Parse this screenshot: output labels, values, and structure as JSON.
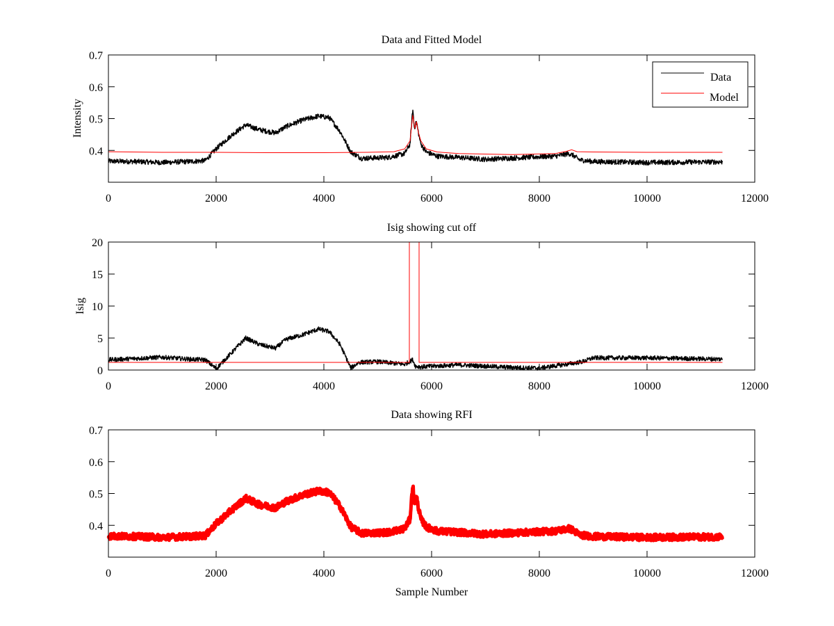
{
  "chart_data": [
    {
      "type": "line",
      "title": "Data and Fitted Model",
      "xlabel": "",
      "ylabel": "Intensity",
      "xlim": [
        0,
        12000
      ],
      "ylim": [
        0.3,
        0.7
      ],
      "xticks": [
        "0",
        "2000",
        "4000",
        "6000",
        "8000",
        "10000",
        "12000"
      ],
      "xtick_values": [
        0,
        2000,
        4000,
        6000,
        8000,
        10000,
        12000
      ],
      "yticks": [
        "0.4",
        "0.5",
        "0.6",
        "0.7"
      ],
      "ytick_values": [
        0.4,
        0.5,
        0.6,
        0.7
      ],
      "legend": {
        "placement": "top-right",
        "entries": [
          "Data",
          "Model"
        ]
      },
      "series": [
        {
          "name": "Data",
          "color": "#000000",
          "noise": 0.008,
          "x": [
            0,
            500,
            1000,
            1500,
            1800,
            2000,
            2300,
            2550,
            2800,
            3100,
            3300,
            3600,
            3900,
            4100,
            4300,
            4500,
            4700,
            5200,
            5500,
            5600,
            5650,
            5680,
            5720,
            5750,
            5800,
            5900,
            6100,
            6500,
            7000,
            7500,
            8000,
            8300,
            8550,
            8620,
            8750,
            9000,
            10000,
            11400
          ],
          "y": [
            0.366,
            0.365,
            0.362,
            0.365,
            0.368,
            0.405,
            0.45,
            0.48,
            0.465,
            0.455,
            0.475,
            0.495,
            0.508,
            0.503,
            0.46,
            0.395,
            0.375,
            0.378,
            0.39,
            0.42,
            0.53,
            0.47,
            0.49,
            0.46,
            0.42,
            0.395,
            0.382,
            0.378,
            0.372,
            0.376,
            0.38,
            0.382,
            0.39,
            0.385,
            0.37,
            0.365,
            0.362,
            0.364
          ]
        },
        {
          "name": "Model",
          "color": "#ff0000",
          "noise": 0,
          "x": [
            0,
            1000,
            2000,
            3000,
            4000,
            4800,
            5300,
            5500,
            5600,
            5650,
            5690,
            5720,
            5750,
            5800,
            5900,
            6100,
            6500,
            7500,
            8300,
            8500,
            8600,
            8700,
            9000,
            10000,
            11400
          ],
          "y": [
            0.396,
            0.394,
            0.394,
            0.393,
            0.393,
            0.394,
            0.396,
            0.405,
            0.43,
            0.51,
            0.47,
            0.49,
            0.46,
            0.43,
            0.405,
            0.395,
            0.39,
            0.387,
            0.39,
            0.397,
            0.402,
            0.396,
            0.395,
            0.394,
            0.394
          ]
        }
      ]
    },
    {
      "type": "line",
      "title": "Isig showing cut off",
      "xlabel": "",
      "ylabel": "Isig",
      "xlim": [
        0,
        12000
      ],
      "ylim": [
        0,
        20
      ],
      "xticks": [
        "0",
        "2000",
        "4000",
        "6000",
        "8000",
        "10000",
        "12000"
      ],
      "xtick_values": [
        0,
        2000,
        4000,
        6000,
        8000,
        10000,
        12000
      ],
      "yticks": [
        "0",
        "5",
        "10",
        "15",
        "20"
      ],
      "ytick_values": [
        0,
        5,
        10,
        15,
        20
      ],
      "series": [
        {
          "name": "Isig",
          "color": "#000000",
          "noise": 0.35,
          "x": [
            0,
            500,
            1000,
            1500,
            1800,
            2000,
            2150,
            2550,
            2800,
            3100,
            3300,
            3600,
            3900,
            4100,
            4300,
            4500,
            4650,
            5000,
            5500,
            5650,
            5700,
            5800,
            6500,
            7000,
            7500,
            8000,
            8500,
            8800,
            9000,
            10000,
            11400
          ],
          "y": [
            1.6,
            1.8,
            2.0,
            1.7,
            1.6,
            0.2,
            1.5,
            5.0,
            4.0,
            3.4,
            4.8,
            5.5,
            6.4,
            6.0,
            4.0,
            0.3,
            1.2,
            1.3,
            0.9,
            1.6,
            0.6,
            0.5,
            0.8,
            0.6,
            0.4,
            0.3,
            0.9,
            1.3,
            1.9,
            1.9,
            1.7
          ]
        },
        {
          "name": "Cut off",
          "color": "#ff0000",
          "noise": 0,
          "x": [
            0,
            5587,
            5587,
            5768,
            5768,
            11400
          ],
          "y": [
            1.2,
            1.2,
            20,
            20,
            1.2,
            1.2
          ]
        }
      ]
    },
    {
      "type": "line",
      "title": "Data showing RFI",
      "xlabel": "Sample Number",
      "ylabel": "",
      "xlim": [
        0,
        12000
      ],
      "ylim": [
        0.3,
        0.7
      ],
      "xticks": [
        "0",
        "2000",
        "4000",
        "6000",
        "8000",
        "10000",
        "12000"
      ],
      "xtick_values": [
        0,
        2000,
        4000,
        6000,
        8000,
        10000,
        12000
      ],
      "yticks": [
        "0.4",
        "0.5",
        "0.6",
        "0.7"
      ],
      "ytick_values": [
        0.4,
        0.5,
        0.6,
        0.7
      ],
      "series": [
        {
          "name": "RFI",
          "color": "#ff0000",
          "noise": 0.01,
          "x": [
            0,
            500,
            1000,
            1500,
            1800,
            2000,
            2300,
            2550,
            2800,
            3100,
            3300,
            3600,
            3900,
            4100,
            4300,
            4500,
            4700,
            5200,
            5500,
            5600,
            5650,
            5680,
            5720,
            5750,
            5800,
            5900,
            6100,
            6500,
            7000,
            7500,
            8000,
            8300,
            8550,
            8620,
            8750,
            9000,
            10000,
            11400
          ],
          "y": [
            0.366,
            0.365,
            0.362,
            0.365,
            0.368,
            0.405,
            0.45,
            0.485,
            0.465,
            0.455,
            0.475,
            0.495,
            0.508,
            0.503,
            0.46,
            0.395,
            0.375,
            0.378,
            0.39,
            0.42,
            0.53,
            0.47,
            0.49,
            0.46,
            0.42,
            0.395,
            0.382,
            0.378,
            0.372,
            0.376,
            0.38,
            0.382,
            0.39,
            0.385,
            0.37,
            0.365,
            0.362,
            0.364
          ]
        }
      ]
    }
  ]
}
